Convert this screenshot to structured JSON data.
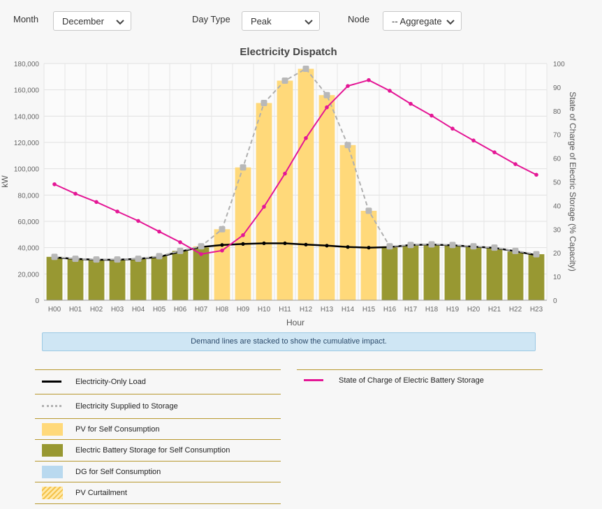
{
  "filters": {
    "month": {
      "label": "Month",
      "value": "December"
    },
    "day_type": {
      "label": "Day Type",
      "value": "Peak"
    },
    "node": {
      "label": "Node",
      "value": "-- Aggregate"
    }
  },
  "notice": "Demand lines are stacked to show the cumulative impact.",
  "legend": [
    {
      "label": "Electricity-Only Load",
      "swatch": "line",
      "color": "#000000"
    },
    {
      "label": "Electricity Supplied to Storage",
      "swatch": "dashed",
      "color": "#b0b0b0"
    },
    {
      "label": "PV for Self Consumption",
      "swatch": "box",
      "color": "#ffd97a"
    },
    {
      "label": "Electric Battery Storage for Self Consumption",
      "swatch": "box",
      "color": "#989832"
    },
    {
      "label": "DG for Self Consumption",
      "swatch": "box",
      "color": "#b9d9ef"
    },
    {
      "label": "PV Curtailment",
      "swatch": "hatch",
      "color": "#ffd97a"
    },
    {
      "label": "State of Charge of Electric Battery Storage",
      "swatch": "line",
      "color": "#e41695"
    }
  ],
  "chart_data": {
    "type": "bar",
    "title": "Electricity Dispatch",
    "xlabel": "Hour",
    "ylabel": "kW",
    "y2label": "State of Charge of Electric Storage (% Capacity)",
    "ylim": [
      0,
      180000
    ],
    "y2lim": [
      0,
      100
    ],
    "y_ticks": [
      "0",
      "20,000",
      "40,000",
      "60,000",
      "80,000",
      "100,000",
      "120,000",
      "140,000",
      "160,000",
      "180,000"
    ],
    "y2_ticks": [
      "0",
      "10",
      "20",
      "30",
      "40",
      "50",
      "60",
      "70",
      "80",
      "90",
      "100"
    ],
    "grid": true,
    "categories": [
      "H00",
      "H01",
      "H02",
      "H03",
      "H04",
      "H05",
      "H06",
      "H07",
      "H08",
      "H09",
      "H10",
      "H11",
      "H12",
      "H13",
      "H14",
      "H15",
      "H16",
      "H17",
      "H18",
      "H19",
      "H20",
      "H21",
      "H22",
      "H23"
    ],
    "series": [
      {
        "name": "PV for Self Consumption",
        "kind": "bar",
        "color": "#ffd97a",
        "values": [
          0,
          0,
          0,
          0,
          0,
          0,
          0,
          1000,
          54000,
          101000,
          150000,
          167000,
          176000,
          156000,
          118000,
          68000,
          1000,
          0,
          0,
          0,
          0,
          0,
          0,
          0
        ]
      },
      {
        "name": "Electric Battery Storage for Self Consumption",
        "kind": "bar",
        "color": "#989832",
        "values": [
          33000,
          31500,
          30500,
          30500,
          31500,
          33500,
          37500,
          40000,
          0,
          0,
          0,
          0,
          0,
          0,
          0,
          0,
          40000,
          42000,
          42000,
          41500,
          40500,
          39500,
          37000,
          35000
        ]
      },
      {
        "name": "Electricity-Only Load",
        "kind": "line",
        "color": "#000000",
        "values": [
          32500,
          31500,
          30800,
          30800,
          31500,
          33000,
          37000,
          40500,
          42000,
          42800,
          43300,
          43300,
          42300,
          41500,
          40500,
          40000,
          40400,
          42000,
          42300,
          41800,
          40800,
          39800,
          37300,
          34300
        ]
      },
      {
        "name": "Electricity Supplied to Storage",
        "kind": "dashed",
        "color": "#b0b0b0",
        "values": [
          33000,
          31500,
          31000,
          31000,
          31500,
          33500,
          37500,
          41000,
          54000,
          101000,
          150000,
          167000,
          176000,
          156000,
          118000,
          68000,
          41000,
          42000,
          42500,
          42000,
          41000,
          40000,
          37500,
          35000
        ]
      },
      {
        "name": "State of Charge of Electric Battery Storage",
        "kind": "soc",
        "color": "#e41695",
        "values": [
          49,
          45,
          41.5,
          37.5,
          33.5,
          29,
          24.5,
          19.5,
          21,
          27.5,
          39.5,
          53.5,
          68.5,
          81.5,
          90.5,
          93,
          88.5,
          83,
          78,
          72.5,
          67.5,
          62.5,
          57.5,
          53
        ]
      }
    ]
  }
}
